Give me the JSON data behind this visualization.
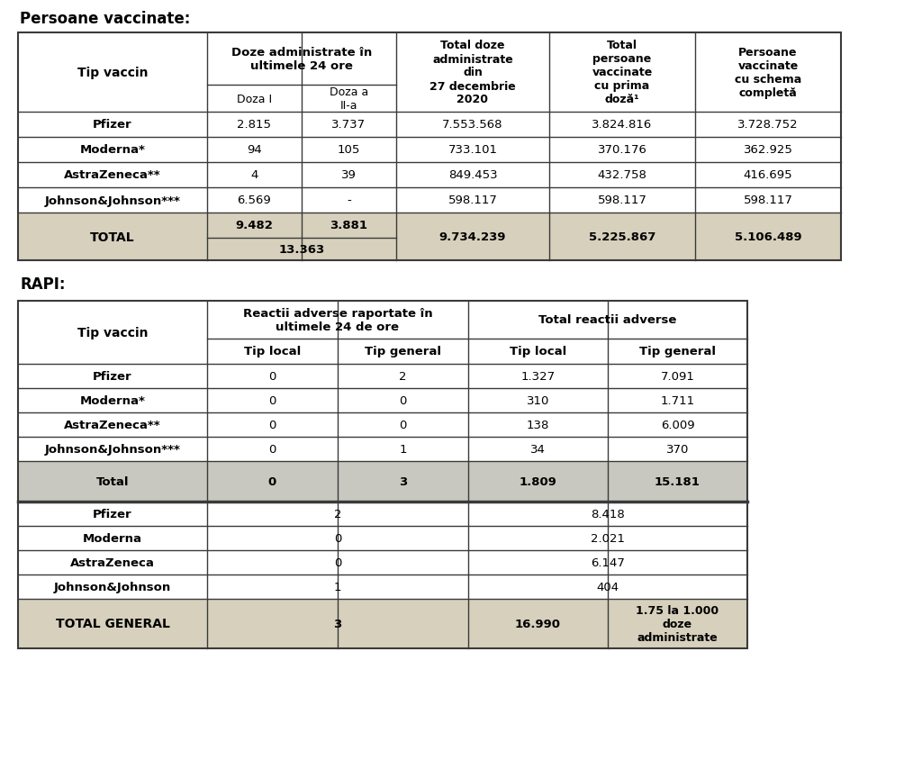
{
  "bg_color": "#ffffff",
  "border_color": "#3a3a3a",
  "header_bg": "#d6d0bc",
  "total_bg": "#d6d0bc",
  "white_bg": "#ffffff",
  "light_gray_bg": "#c8c8c0",
  "title1": "Persoane vaccinate:",
  "title2": "RAPI:",
  "t1_rows": [
    [
      "Pfizer",
      "2.815",
      "3.737",
      "7.553.568",
      "3.824.816",
      "3.728.752"
    ],
    [
      "Moderna*",
      "94",
      "105",
      "733.101",
      "370.176",
      "362.925"
    ],
    [
      "AstraZeneca**",
      "4",
      "39",
      "849.453",
      "432.758",
      "416.695"
    ],
    [
      "Johnson&Johnson***",
      "6.569",
      "-",
      "598.117",
      "598.117",
      "598.117"
    ]
  ],
  "t2_rows1": [
    [
      "Pfizer",
      "0",
      "2",
      "1.327",
      "7.091"
    ],
    [
      "Moderna*",
      "0",
      "0",
      "310",
      "1.711"
    ],
    [
      "AstraZeneca**",
      "0",
      "0",
      "138",
      "6.009"
    ],
    [
      "Johnson&Johnson***",
      "0",
      "1",
      "34",
      "370"
    ]
  ],
  "t2_labels2": [
    "Pfizer",
    "Moderna",
    "AstraZeneca",
    "Johnson&Johnson"
  ],
  "t2_vals24h": [
    "2",
    "0",
    "0",
    "1"
  ],
  "t2_valstotal": [
    "8.418",
    "2.021",
    "6.147",
    "404"
  ]
}
